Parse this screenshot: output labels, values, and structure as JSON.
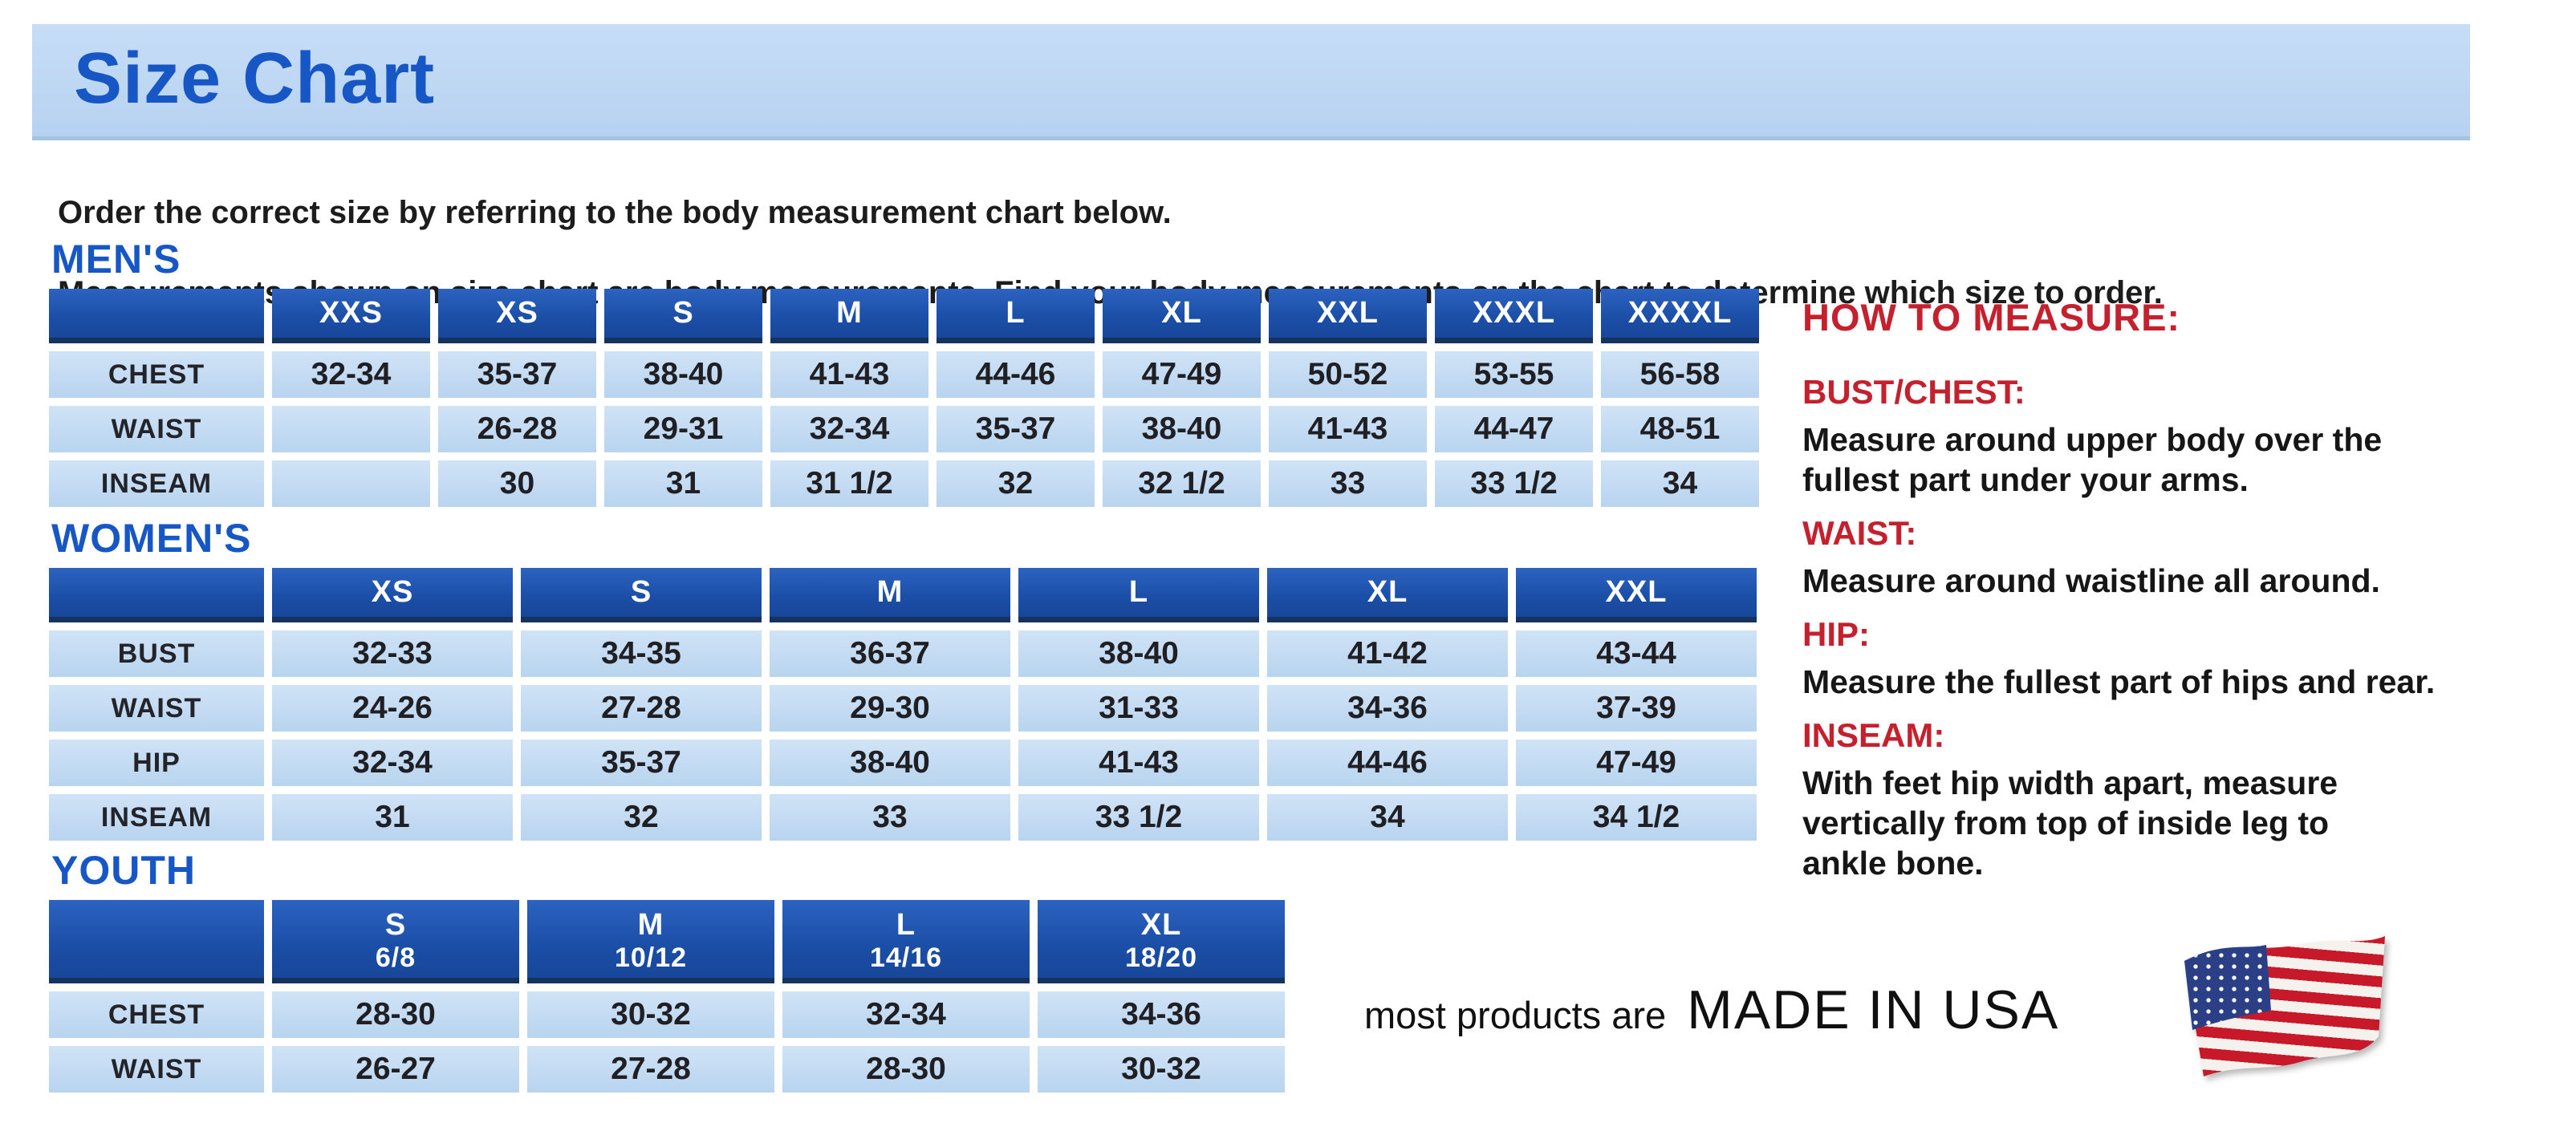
{
  "page": {
    "title": "Size Chart",
    "intro_line1": "Order the correct size by referring to the body measurement chart below.",
    "intro_line2": "Measurements shown on size chart are body measurements.  Find your body measurements on the chart to determine which size to order."
  },
  "tables": {
    "mens": {
      "heading": "MEN'S",
      "columns": [
        "XXS",
        "XS",
        "S",
        "M",
        "L",
        "XL",
        "XXL",
        "XXXL",
        "XXXXL"
      ],
      "rows": [
        {
          "label": "CHEST",
          "values": [
            "32-34",
            "35-37",
            "38-40",
            "41-43",
            "44-46",
            "47-49",
            "50-52",
            "53-55",
            "56-58"
          ]
        },
        {
          "label": "WAIST",
          "values": [
            "",
            "26-28",
            "29-31",
            "32-34",
            "35-37",
            "38-40",
            "41-43",
            "44-47",
            "48-51"
          ]
        },
        {
          "label": "INSEAM",
          "values": [
            "",
            "30",
            "31",
            "31 1/2",
            "32",
            "32 1/2",
            "33",
            "33 1/2",
            "34"
          ]
        }
      ]
    },
    "womens": {
      "heading": "WOMEN'S",
      "columns": [
        "XS",
        "S",
        "M",
        "L",
        "XL",
        "XXL"
      ],
      "rows": [
        {
          "label": "BUST",
          "values": [
            "32-33",
            "34-35",
            "36-37",
            "38-40",
            "41-42",
            "43-44"
          ]
        },
        {
          "label": "WAIST",
          "values": [
            "24-26",
            "27-28",
            "29-30",
            "31-33",
            "34-36",
            "37-39"
          ]
        },
        {
          "label": "HIP",
          "values": [
            "32-34",
            "35-37",
            "38-40",
            "41-43",
            "44-46",
            "47-49"
          ]
        },
        {
          "label": "INSEAM",
          "values": [
            "31",
            "32",
            "33",
            "33 1/2",
            "34",
            "34 1/2"
          ]
        }
      ]
    },
    "youth": {
      "heading": "YOUTH",
      "columns": [
        {
          "size": "S",
          "range": "6/8"
        },
        {
          "size": "M",
          "range": "10/12"
        },
        {
          "size": "L",
          "range": "14/16"
        },
        {
          "size": "XL",
          "range": "18/20"
        }
      ],
      "rows": [
        {
          "label": "CHEST",
          "values": [
            "28-30",
            "30-32",
            "32-34",
            "34-36"
          ]
        },
        {
          "label": "WAIST",
          "values": [
            "26-27",
            "27-28",
            "28-30",
            "30-32"
          ]
        }
      ]
    }
  },
  "how_to_measure": {
    "heading": "HOW TO MEASURE:",
    "items": [
      {
        "label": "BUST/CHEST:",
        "text": "Measure around upper body over the\nfullest part under your arms."
      },
      {
        "label": "WAIST:",
        "text": "Measure around waistline all around."
      },
      {
        "label": "HIP:",
        "text": "Measure the fullest part of hips and rear."
      },
      {
        "label": "INSEAM:",
        "text": "With feet hip width apart, measure\nvertically from top of inside leg to\nankle bone."
      }
    ]
  },
  "footer": {
    "prefix": "most products are",
    "made_in": "MADE IN USA",
    "flag_icon": "us-flag-icon"
  },
  "colors": {
    "header_blue": "#1b4ea6",
    "cell_blue": "#bdd8f2",
    "banner_blue": "#bcd6f2",
    "heading_blue": "#1757c5",
    "accent_red": "#c4202e",
    "flag_red": "#c8192b",
    "flag_navy": "#2a3f85"
  }
}
